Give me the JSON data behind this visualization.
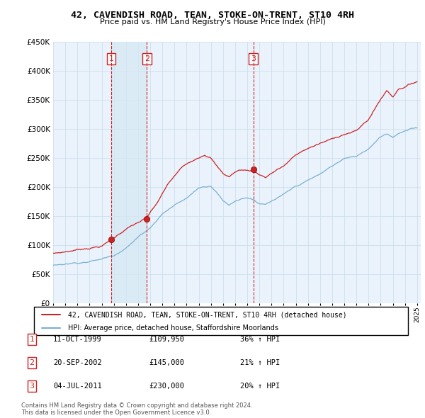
{
  "title": "42, CAVENDISH ROAD, TEAN, STOKE-ON-TRENT, ST10 4RH",
  "subtitle": "Price paid vs. HM Land Registry's House Price Index (HPI)",
  "legend_line1": "42, CAVENDISH ROAD, TEAN, STOKE-ON-TRENT, ST10 4RH (detached house)",
  "legend_line2": "HPI: Average price, detached house, Staffordshire Moorlands",
  "footnote": "Contains HM Land Registry data © Crown copyright and database right 2024.\nThis data is licensed under the Open Government Licence v3.0.",
  "transactions": [
    {
      "num": 1,
      "date": "11-OCT-1999",
      "price": 109950,
      "change": "36% ↑ HPI"
    },
    {
      "num": 2,
      "date": "20-SEP-2002",
      "price": 145000,
      "change": "21% ↑ HPI"
    },
    {
      "num": 3,
      "date": "04-JUL-2011",
      "price": 230000,
      "change": "20% ↑ HPI"
    }
  ],
  "transaction_years": [
    1999.78,
    2002.72,
    2011.5
  ],
  "transaction_prices": [
    109950,
    145000,
    230000
  ],
  "hpi_color": "#7bafd4",
  "price_color": "#cc2222",
  "vline_color": "#cc2222",
  "shade_color": "#d6e8f5",
  "ylim": [
    0,
    450000
  ],
  "yticks": [
    0,
    50000,
    100000,
    150000,
    200000,
    250000,
    300000,
    350000,
    400000,
    450000
  ],
  "bg_color": "#eaf3fb",
  "grid_color": "#c8dcea"
}
